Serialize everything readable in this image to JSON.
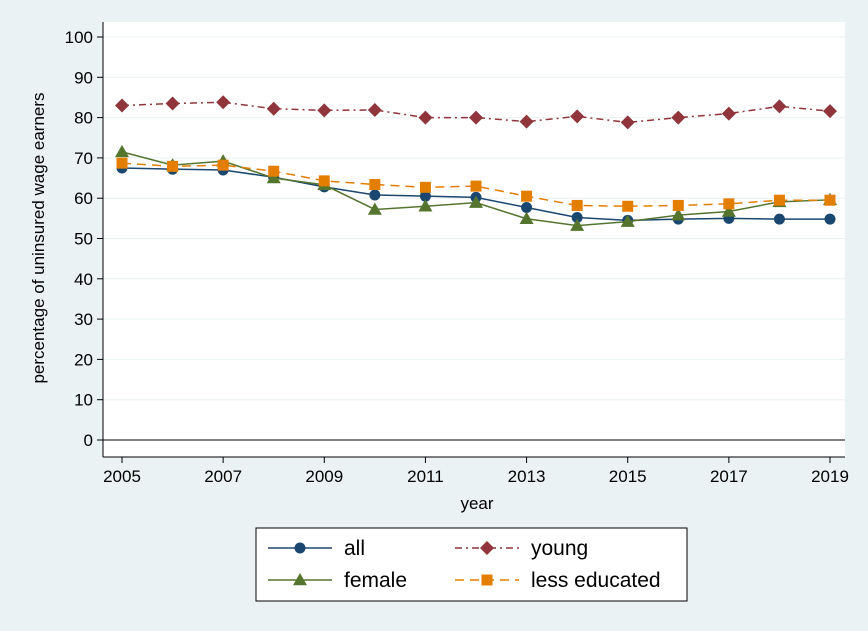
{
  "chart_data": {
    "type": "line",
    "xlabel": "year",
    "ylabel": "percentage of uninsured wage earners",
    "x": [
      2005,
      2006,
      2007,
      2008,
      2009,
      2010,
      2011,
      2012,
      2013,
      2014,
      2015,
      2016,
      2017,
      2018,
      2019
    ],
    "xticks": [
      2005,
      2007,
      2009,
      2011,
      2013,
      2015,
      2017,
      2019
    ],
    "yticks": [
      0,
      10,
      20,
      30,
      40,
      50,
      60,
      70,
      80,
      90,
      100
    ],
    "xlim": [
      2005,
      2019
    ],
    "ylim": [
      0,
      100
    ],
    "grid": true,
    "legend_position": "bottom",
    "series": [
      {
        "name": "all",
        "color": "#1a476f",
        "marker": "circle",
        "dash": "solid",
        "values": [
          67.5,
          67.2,
          67.0,
          65.2,
          62.8,
          60.8,
          60.5,
          60.2,
          57.7,
          55.2,
          54.5,
          54.8,
          55.0,
          54.8,
          54.8
        ]
      },
      {
        "name": "young",
        "color": "#90353b",
        "marker": "diamond",
        "dash": "dashdot",
        "values": [
          83.0,
          83.5,
          83.8,
          82.2,
          81.8,
          81.9,
          80.0,
          80.0,
          79.0,
          80.3,
          78.8,
          80.0,
          81.0,
          82.8,
          81.6
        ]
      },
      {
        "name": "female",
        "color": "#55752f",
        "marker": "triangle",
        "dash": "solid",
        "values": [
          71.5,
          68.2,
          69.2,
          65.0,
          63.3,
          57.2,
          58.0,
          58.9,
          54.9,
          53.2,
          54.2,
          55.8,
          56.7,
          59.1,
          59.6
        ]
      },
      {
        "name": "less educated",
        "color": "#e37e00",
        "marker": "square",
        "dash": "dash",
        "values": [
          68.7,
          67.9,
          68.2,
          66.7,
          64.3,
          63.4,
          62.7,
          63.0,
          60.5,
          58.2,
          58.0,
          58.2,
          58.6,
          59.5,
          59.5
        ]
      }
    ]
  }
}
